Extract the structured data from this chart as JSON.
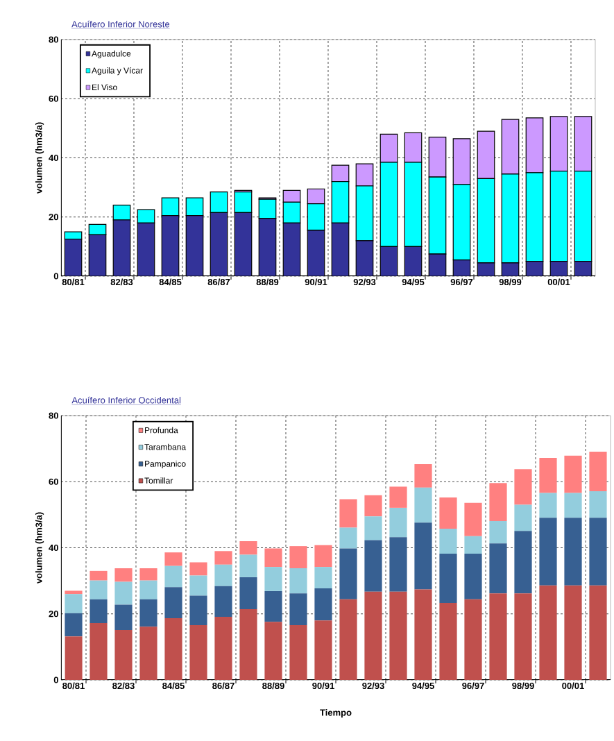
{
  "chart_data": [
    {
      "type": "bar",
      "stacked": true,
      "title": "Acuífero Inferior Noreste",
      "ylabel": "volumen (hm3/a)",
      "categories": [
        "80/81",
        null,
        "82/83",
        null,
        "84/85",
        null,
        "86/87",
        null,
        "88/89",
        null,
        "90/91",
        null,
        "92/93",
        null,
        "94/95",
        null,
        "96/97",
        null,
        "98/99",
        null,
        "00/01",
        null
      ],
      "series": [
        {
          "name": "Aguadulce",
          "color": "#333399",
          "values": [
            12.5,
            14,
            19,
            18,
            20.5,
            20.5,
            21.5,
            21.5,
            19.5,
            18,
            15.5,
            18,
            12,
            10,
            10,
            7.5,
            5.5,
            4.5,
            4.5,
            5,
            5,
            5
          ]
        },
        {
          "name": "Aguila y Vícar",
          "color": "#00ffff",
          "values": [
            2.5,
            3.5,
            5,
            4.5,
            6,
            6,
            7,
            7,
            6.5,
            7,
            9,
            14,
            18.5,
            28.5,
            28.5,
            26,
            25.5,
            28.5,
            30,
            30,
            30.5,
            30.5
          ]
        },
        {
          "name": "El Viso",
          "color": "#cc99ff",
          "values": [
            0,
            0,
            0,
            0,
            0,
            0,
            0,
            0.5,
            0.5,
            4,
            5,
            5.5,
            7.5,
            9.5,
            10,
            13.5,
            15.5,
            16,
            18.5,
            18.5,
            18.5,
            18.5
          ]
        }
      ],
      "ylim": [
        0,
        80
      ],
      "yticks": [
        0,
        20,
        40,
        60,
        80
      ],
      "grid": true,
      "legend": "top left"
    },
    {
      "type": "bar",
      "stacked": true,
      "title": "Acuífero Inferior Occidental",
      "ylabel": "volumen (hm3/a)",
      "xlabel": "Tiempo",
      "categories": [
        "80/81",
        null,
        "82/83",
        null,
        "84/85",
        null,
        "86/87",
        null,
        "88/89",
        null,
        "90/91",
        null,
        "92/93",
        null,
        "94/95",
        null,
        "96/97",
        null,
        "98/99",
        null,
        "00/01",
        null
      ],
      "series": [
        {
          "name": "Tomillar",
          "color": "#c0504d",
          "values": [
            13.2,
            17.2,
            15.1,
            16.1,
            18.7,
            16.6,
            19.1,
            21.4,
            17.6,
            16.6,
            18.0,
            24.4,
            26.7,
            26.7,
            27.4,
            23.3,
            24.4,
            26.2,
            26.2,
            28.6,
            28.6,
            28.6
          ]
        },
        {
          "name": "Pampanico",
          "color": "#376092",
          "values": [
            7.0,
            7.2,
            7.7,
            8.3,
            9.4,
            8.9,
            9.3,
            9.7,
            9.3,
            9.6,
            9.7,
            15.4,
            15.6,
            16.5,
            20.2,
            14.9,
            13.8,
            15.1,
            18.9,
            20.5,
            20.5,
            20.5
          ]
        },
        {
          "name": "Tarambana",
          "color": "#93cddd",
          "values": [
            5.8,
            5.7,
            6.9,
            5.7,
            6.4,
            6.1,
            6.5,
            6.8,
            7.3,
            7.6,
            6.5,
            6.3,
            7.2,
            8.9,
            10.6,
            7.6,
            5.3,
            6.8,
            7.9,
            7.5,
            7.5,
            8.0
          ]
        },
        {
          "name": "Profunda",
          "color": "#ff8080",
          "values": [
            1.0,
            2.9,
            4.1,
            3.7,
            4.1,
            4.0,
            4.1,
            4.1,
            5.6,
            6.7,
            6.6,
            8.6,
            6.4,
            6.4,
            7.1,
            9.4,
            10.1,
            11.5,
            10.8,
            10.6,
            11.3,
            12.0
          ]
        }
      ],
      "ylim": [
        0,
        80
      ],
      "yticks": [
        0,
        20,
        40,
        60,
        80
      ],
      "grid": true,
      "legend": "top left"
    }
  ]
}
